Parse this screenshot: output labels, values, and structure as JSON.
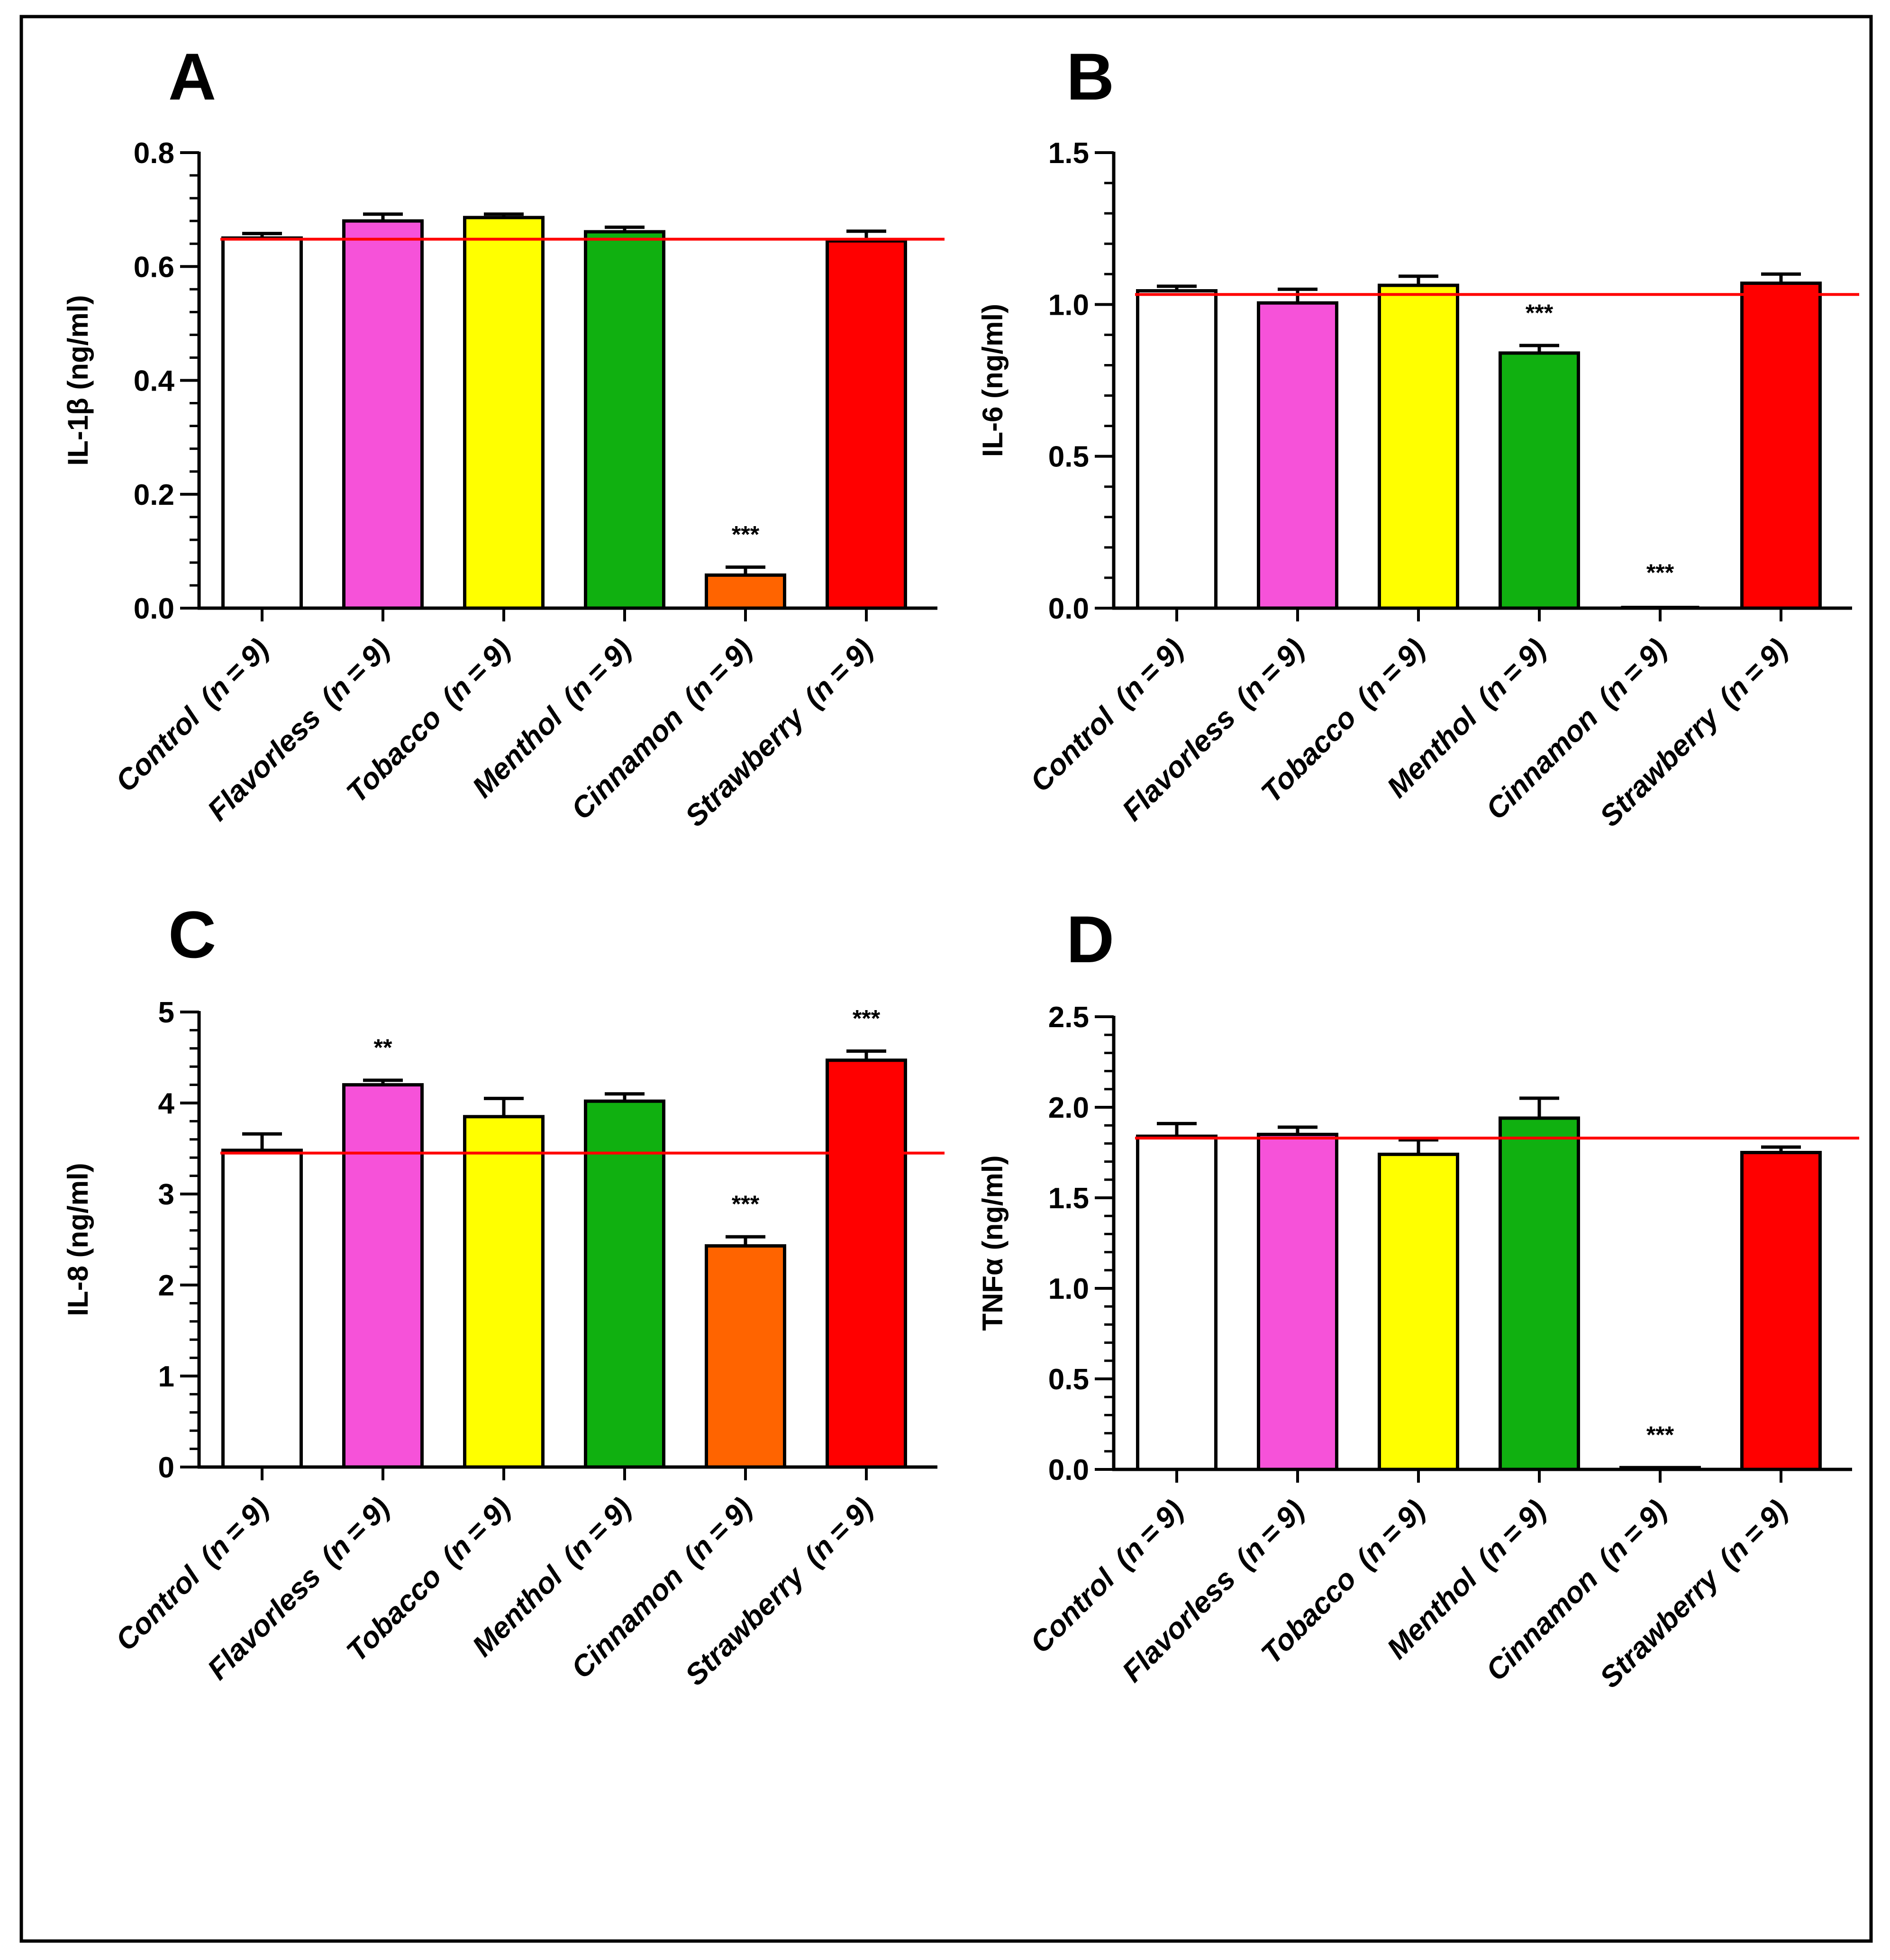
{
  "figure": {
    "panels": [
      {
        "letter": "A",
        "ylabel": "IL-1β (ng/ml)",
        "ylim": [
          0,
          0.8
        ],
        "yticks": [
          0.0,
          0.2,
          0.4,
          0.6,
          0.8
        ],
        "tick_labels": [
          "0.0",
          "0.2",
          "0.4",
          "0.6",
          "0.8"
        ],
        "minor_ticks_per_major": 5,
        "control_line": 0.648,
        "categories": [
          "Control",
          "Flavorless",
          "Tobacco",
          "Menthol",
          "Cinnamon",
          "Strawberry"
        ],
        "values": [
          0.65,
          0.68,
          0.686,
          0.661,
          0.058,
          0.645
        ],
        "errors": [
          0.008,
          0.012,
          0.006,
          0.008,
          0.014,
          0.017
        ],
        "significance": [
          "",
          "",
          "",
          "",
          "***",
          ""
        ]
      },
      {
        "letter": "B",
        "ylabel": "IL-6 (ng/ml)",
        "ylim": [
          0,
          1.5
        ],
        "yticks": [
          0.0,
          0.5,
          1.0,
          1.5
        ],
        "tick_labels": [
          "0.0",
          "0.5",
          "1.0",
          "1.5"
        ],
        "minor_ticks_per_major": 5,
        "control_line": 1.033,
        "categories": [
          "Control",
          "Flavorless",
          "Tobacco",
          "Menthol",
          "Cinnamon",
          "Strawberry"
        ],
        "values": [
          1.045,
          1.005,
          1.063,
          0.84,
          0.0,
          1.07
        ],
        "errors": [
          0.015,
          0.045,
          0.03,
          0.025,
          0.0,
          0.03
        ],
        "significance": [
          "",
          "",
          "",
          "***",
          "***",
          ""
        ]
      },
      {
        "letter": "C",
        "ylabel": "IL-8 (ng/ml)",
        "ylim": [
          0,
          5
        ],
        "yticks": [
          0,
          1,
          2,
          3,
          4,
          5
        ],
        "tick_labels": [
          "0",
          "1",
          "2",
          "3",
          "4",
          "5"
        ],
        "minor_ticks_per_major": 5,
        "control_line": 3.45,
        "categories": [
          "Control",
          "Flavorless",
          "Tobacco",
          "Menthol",
          "Cinnamon",
          "Strawberry"
        ],
        "values": [
          3.48,
          4.2,
          3.85,
          4.02,
          2.43,
          4.47
        ],
        "errors": [
          0.18,
          0.05,
          0.2,
          0.08,
          0.1,
          0.1
        ],
        "significance": [
          "",
          "**",
          "",
          "",
          "***",
          "***"
        ]
      },
      {
        "letter": "D",
        "ylabel": "TNFα (ng/ml)",
        "ylim": [
          0,
          2.5
        ],
        "yticks": [
          0.0,
          0.5,
          1.0,
          1.5,
          2.0,
          2.5
        ],
        "tick_labels": [
          "0.0",
          "0.5",
          "1.0",
          "1.5",
          "2.0",
          "2.5"
        ],
        "minor_ticks_per_major": 5,
        "control_line": 1.83,
        "categories": [
          "Control",
          "Flavorless",
          "Tobacco",
          "Menthol",
          "Cinnamon",
          "Strawberry"
        ],
        "values": [
          1.84,
          1.85,
          1.74,
          1.94,
          0.01,
          1.75
        ],
        "errors": [
          0.07,
          0.04,
          0.08,
          0.11,
          0.0,
          0.03
        ],
        "significance": [
          "",
          "",
          "",
          "",
          "***",
          ""
        ]
      }
    ],
    "category_n_text": "(n = 9)",
    "bar_colors": [
      "#ffffff",
      "#f652d9",
      "#ffff00",
      "#10b010",
      "#ff6400",
      "#ff0000"
    ],
    "control_line_color": "#ff0000",
    "frame_color": "#000000"
  },
  "chart_data": [
    {
      "type": "bar",
      "title": "A",
      "ylabel": "IL-1β (ng/ml)",
      "categories": [
        "Control (n = 9)",
        "Flavorless (n = 9)",
        "Tobacco (n = 9)",
        "Menthol (n = 9)",
        "Cinnamon (n = 9)",
        "Strawberry (n = 9)"
      ],
      "values": [
        0.65,
        0.68,
        0.686,
        0.661,
        0.058,
        0.645
      ],
      "errors": [
        0.008,
        0.012,
        0.006,
        0.008,
        0.014,
        0.017
      ],
      "reference_line": 0.648,
      "ylim": [
        0,
        0.8
      ],
      "significance": [
        "",
        "",
        "",
        "",
        "***",
        ""
      ],
      "grid": false
    },
    {
      "type": "bar",
      "title": "B",
      "ylabel": "IL-6 (ng/ml)",
      "categories": [
        "Control (n = 9)",
        "Flavorless (n = 9)",
        "Tobacco (n = 9)",
        "Menthol (n = 9)",
        "Cinnamon (n = 9)",
        "Strawberry (n = 9)"
      ],
      "values": [
        1.045,
        1.005,
        1.063,
        0.84,
        0.0,
        1.07
      ],
      "errors": [
        0.015,
        0.045,
        0.03,
        0.025,
        0.0,
        0.03
      ],
      "reference_line": 1.033,
      "ylim": [
        0,
        1.5
      ],
      "significance": [
        "",
        "",
        "",
        "***",
        "***",
        ""
      ],
      "grid": false
    },
    {
      "type": "bar",
      "title": "C",
      "ylabel": "IL-8 (ng/ml)",
      "categories": [
        "Control (n = 9)",
        "Flavorless (n = 9)",
        "Tobacco (n = 9)",
        "Menthol (n = 9)",
        "Cinnamon (n = 9)",
        "Strawberry (n = 9)"
      ],
      "values": [
        3.48,
        4.2,
        3.85,
        4.02,
        2.43,
        4.47
      ],
      "errors": [
        0.18,
        0.05,
        0.2,
        0.08,
        0.1,
        0.1
      ],
      "reference_line": 3.45,
      "ylim": [
        0,
        5
      ],
      "significance": [
        "",
        "**",
        "",
        "",
        "***",
        "***"
      ],
      "grid": false
    },
    {
      "type": "bar",
      "title": "D",
      "ylabel": "TNFα (ng/ml)",
      "categories": [
        "Control (n = 9)",
        "Flavorless (n = 9)",
        "Tobacco (n = 9)",
        "Menthol (n = 9)",
        "Cinnamon (n = 9)",
        "Strawberry (n = 9)"
      ],
      "values": [
        1.84,
        1.85,
        1.74,
        1.94,
        0.01,
        1.75
      ],
      "errors": [
        0.07,
        0.04,
        0.08,
        0.11,
        0.0,
        0.03
      ],
      "reference_line": 1.83,
      "ylim": [
        0,
        2.5
      ],
      "significance": [
        "",
        "",
        "",
        "",
        "***",
        ""
      ],
      "grid": false
    }
  ]
}
